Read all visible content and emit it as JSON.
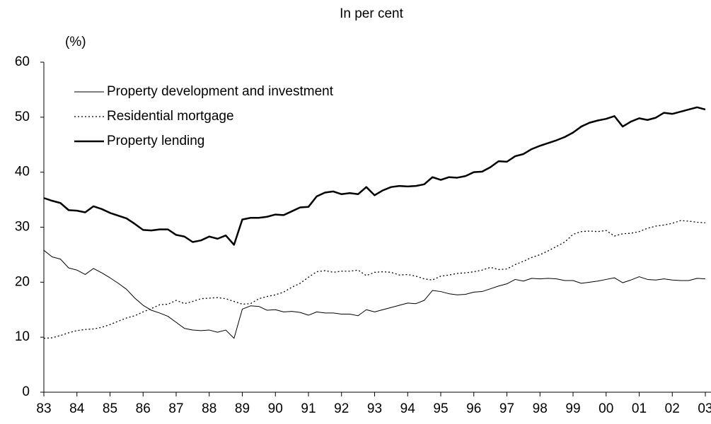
{
  "chart_data": {
    "type": "line",
    "title": "In per cent",
    "ylabel": "(%)",
    "categories": [
      "83",
      null,
      null,
      null,
      "84",
      null,
      null,
      null,
      "85",
      null,
      null,
      null,
      "86",
      null,
      null,
      null,
      "87",
      null,
      null,
      null,
      "88",
      null,
      null,
      null,
      "89",
      null,
      null,
      null,
      "90",
      null,
      null,
      null,
      "91",
      null,
      null,
      null,
      "92",
      null,
      null,
      null,
      "93",
      null,
      null,
      null,
      "94",
      null,
      null,
      null,
      "95",
      null,
      null,
      null,
      "96",
      null,
      null,
      null,
      "97",
      null,
      null,
      null,
      "98",
      null,
      null,
      null,
      "99",
      null,
      null,
      null,
      "00",
      null,
      null,
      null,
      "01",
      null,
      null,
      null,
      "02",
      null,
      null,
      null,
      "03"
    ],
    "series": [
      {
        "name": "Property development and investment",
        "color": "#000000",
        "linewidth": 1,
        "linestyle": "solid",
        "values": [
          25.8,
          24.6,
          24.2,
          22.6,
          22.2,
          21.4,
          22.5,
          21.7,
          20.8,
          19.8,
          18.7,
          17.1,
          15.8,
          14.9,
          14.4,
          13.8,
          12.7,
          11.6,
          11.3,
          11.2,
          11.3,
          10.9,
          11.3,
          9.8,
          15.1,
          15.7,
          15.6,
          14.9,
          15.0,
          14.6,
          14.7,
          14.5,
          14.0,
          14.6,
          14.4,
          14.4,
          14.2,
          14.2,
          13.9,
          15.0,
          14.6,
          15.0,
          15.4,
          15.8,
          16.2,
          16.1,
          16.7,
          18.5,
          18.3,
          17.9,
          17.7,
          17.8,
          18.2,
          18.3,
          18.8,
          19.3,
          19.7,
          20.5,
          20.2,
          20.7,
          20.6,
          20.7,
          20.6,
          20.3,
          20.3,
          19.8,
          20.0,
          20.2,
          20.5,
          20.8,
          19.9,
          20.4,
          21.0,
          20.5,
          20.4,
          20.6,
          20.4,
          20.3,
          20.3,
          20.7,
          20.6
        ]
      },
      {
        "name": "Residential mortgage",
        "color": "#000000",
        "linewidth": 1.3,
        "linestyle": "dotted",
        "values": [
          9.8,
          9.9,
          10.3,
          10.8,
          11.2,
          11.4,
          11.5,
          11.8,
          12.3,
          12.9,
          13.5,
          13.9,
          14.6,
          15.2,
          15.9,
          16.0,
          16.7,
          16.1,
          16.5,
          17.0,
          17.1,
          17.2,
          17.0,
          16.5,
          16.0,
          16.1,
          17.0,
          17.4,
          17.7,
          18.2,
          19.1,
          19.8,
          20.9,
          21.9,
          22.1,
          21.8,
          22.0,
          22.0,
          22.2,
          21.2,
          21.8,
          21.9,
          21.8,
          21.3,
          21.4,
          21.1,
          20.6,
          20.4,
          21.1,
          21.3,
          21.6,
          21.7,
          21.9,
          22.2,
          22.7,
          22.3,
          22.4,
          23.2,
          23.8,
          24.5,
          25.0,
          25.7,
          26.5,
          27.3,
          28.7,
          29.2,
          29.3,
          29.2,
          29.4,
          28.4,
          28.8,
          28.9,
          29.2,
          29.8,
          30.2,
          30.4,
          30.7,
          31.2,
          31.1,
          30.9,
          30.8
        ]
      },
      {
        "name": "Property lending",
        "color": "#000000",
        "linewidth": 2.5,
        "linestyle": "solid",
        "values": [
          35.3,
          34.8,
          34.4,
          33.1,
          33.0,
          32.7,
          33.8,
          33.3,
          32.6,
          32.1,
          31.6,
          30.6,
          29.5,
          29.4,
          29.6,
          29.6,
          28.6,
          28.3,
          27.3,
          27.6,
          28.3,
          27.9,
          28.5,
          26.8,
          31.4,
          31.7,
          31.7,
          31.9,
          32.3,
          32.2,
          32.9,
          33.6,
          33.7,
          35.6,
          36.3,
          36.5,
          36.0,
          36.2,
          36.0,
          37.3,
          35.8,
          36.7,
          37.3,
          37.5,
          37.4,
          37.5,
          37.8,
          39.1,
          38.6,
          39.1,
          39.0,
          39.3,
          40.0,
          40.1,
          40.9,
          42.0,
          41.9,
          42.9,
          43.3,
          44.2,
          44.8,
          45.3,
          45.8,
          46.4,
          47.2,
          48.3,
          49.0,
          49.4,
          49.7,
          50.2,
          48.3,
          49.2,
          49.8,
          49.5,
          49.9,
          50.8,
          50.6,
          51.0,
          51.4,
          51.8,
          51.4
        ]
      }
    ],
    "ylim": [
      0,
      60
    ],
    "yticks": [
      0,
      10,
      20,
      30,
      40,
      50,
      60
    ],
    "grid": false,
    "legend": "upper left"
  }
}
